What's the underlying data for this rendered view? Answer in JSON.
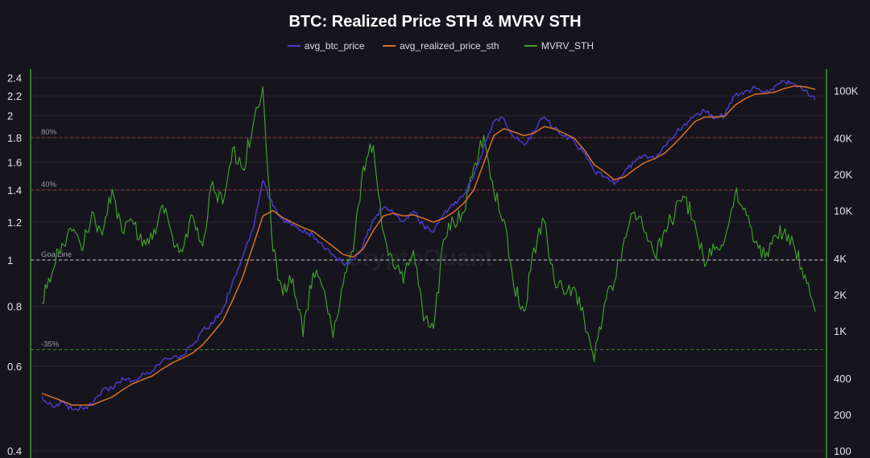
{
  "chart_data": {
    "type": "line",
    "title": "BTC: Realized Price STH & MVRV STH",
    "watermark": "CryptoQuant",
    "legend": {
      "placement": "top-center"
    },
    "grid": true,
    "background_color": "#16151d",
    "left_axis": {
      "scale": "log",
      "range": [
        0.4,
        2.5
      ],
      "ticks": [
        0.4,
        0.6,
        0.8,
        1,
        1.2,
        1.4,
        1.6,
        1.8,
        2,
        2.2,
        2.4
      ],
      "tick_labels": [
        "0.4",
        "0.6",
        "0.8",
        "1",
        "1.2",
        "1.4",
        "1.6",
        "1.8",
        "2",
        "2.2",
        "2.4"
      ],
      "axis_color": "#3f9e2c"
    },
    "right_axis": {
      "scale": "log",
      "range": [
        100,
        150000
      ],
      "ticks": [
        100,
        200,
        400,
        1000,
        2000,
        4000,
        10000,
        20000,
        40000,
        100000
      ],
      "tick_labels": [
        "100",
        "200",
        "400",
        "1K",
        "2K",
        "4K",
        "10K",
        "20K",
        "40K",
        "100K"
      ],
      "axis_color": "#3f9e2c"
    },
    "reference_lines": [
      {
        "label": "80%",
        "value": 1.8,
        "color": "#a83232",
        "style": "dashed"
      },
      {
        "label": "40%",
        "value": 1.4,
        "color": "#a83232",
        "style": "dashed"
      },
      {
        "label": "GoalLine",
        "value": 1.0,
        "color": "#c8c8d0",
        "style": "dashed"
      },
      {
        "label": "-35%",
        "value": 0.65,
        "color": "#3d8a2c",
        "style": "dashed"
      }
    ],
    "series": [
      {
        "name": "avg_btc_price",
        "axis": "right",
        "color": "#4b3acb",
        "values": [
          280,
          240,
          250,
          220,
          230,
          240,
          320,
          330,
          400,
          380,
          440,
          460,
          560,
          600,
          620,
          750,
          1000,
          1150,
          1500,
          2600,
          4200,
          7000,
          17500,
          11000,
          8500,
          7600,
          6600,
          6300,
          5000,
          4300,
          3600,
          3900,
          5200,
          8500,
          10500,
          9600,
          8000,
          9800,
          7500,
          6600,
          9300,
          11200,
          13500,
          19000,
          34000,
          55000,
          59000,
          41000,
          35000,
          45000,
          61000,
          48000,
          42000,
          37000,
          30000,
          21000,
          19000,
          16600,
          21000,
          25000,
          29000,
          27000,
          35000,
          43000,
          52000,
          63000,
          67000,
          58000,
          62000,
          92000,
          97000,
          105000,
          94000,
          108000,
          118000,
          111000,
          102000,
          83000
        ]
      },
      {
        "name": "avg_realized_price_sth",
        "axis": "right",
        "color": "#d9702c",
        "values": [
          300,
          280,
          260,
          240,
          240,
          240,
          260,
          280,
          320,
          360,
          390,
          420,
          480,
          540,
          590,
          650,
          760,
          950,
          1200,
          1800,
          2800,
          5000,
          9000,
          10000,
          8700,
          7900,
          7200,
          6700,
          5800,
          5000,
          4300,
          4100,
          4800,
          6800,
          9000,
          9500,
          9000,
          9200,
          8600,
          8000,
          8600,
          9700,
          11500,
          14800,
          25000,
          42000,
          48000,
          45000,
          42000,
          44000,
          50000,
          48000,
          44000,
          40000,
          32000,
          24000,
          21000,
          18000,
          19000,
          22000,
          25000,
          27000,
          30000,
          36000,
          44000,
          55000,
          60000,
          60000,
          61000,
          75000,
          85000,
          93000,
          94000,
          97000,
          104000,
          109000,
          107000,
          102000
        ]
      },
      {
        "name": "MVRV_STH",
        "axis": "left",
        "color": "#3f9e2c",
        "values": [
          0.82,
          0.95,
          1.08,
          1.15,
          1.05,
          1.25,
          1.12,
          1.4,
          1.15,
          1.22,
          1.08,
          1.1,
          1.3,
          1.12,
          1.05,
          1.25,
          1.08,
          1.45,
          1.3,
          1.7,
          1.55,
          1.9,
          2.3,
          1.05,
          0.85,
          0.92,
          0.7,
          0.95,
          0.88,
          0.68,
          0.9,
          1.05,
          1.55,
          1.75,
          1.15,
          0.98,
          0.9,
          1.05,
          0.75,
          0.72,
          1.1,
          1.2,
          1.25,
          1.55,
          1.8,
          1.4,
          1.22,
          0.88,
          0.78,
          1.05,
          1.2,
          0.92,
          0.85,
          0.88,
          0.75,
          0.62,
          0.82,
          0.9,
          1.1,
          1.25,
          1.15,
          1.02,
          1.15,
          1.25,
          1.35,
          1.2,
          0.98,
          1.05,
          1.1,
          1.38,
          1.28,
          1.08,
          1.02,
          1.12,
          1.15,
          1.05,
          0.92,
          0.78
        ]
      }
    ]
  }
}
